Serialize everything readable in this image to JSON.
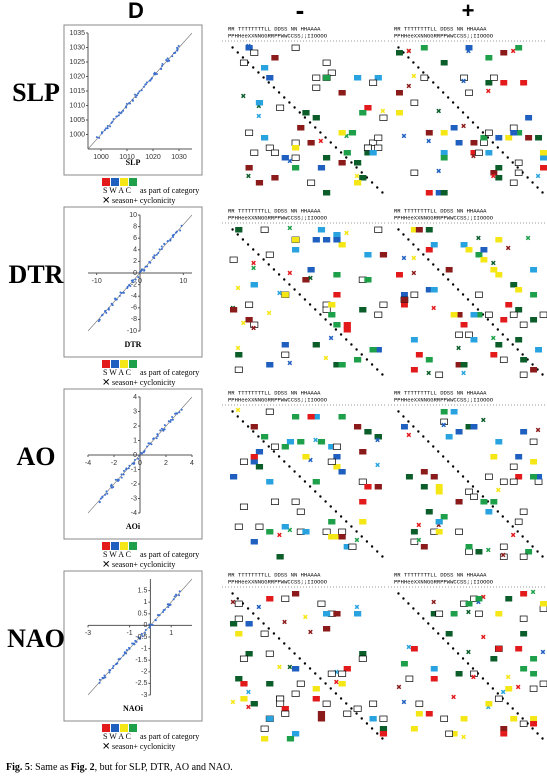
{
  "header": {
    "left": "D",
    "minus": "-",
    "plus": "+"
  },
  "matrix_header": {
    "row1": "RR  TTTTTTTTLL      DDSS        NN  HHAAAA",
    "row2": "PPHHeeXXNNGGRRPPWWCCSS;;IIOOOO"
  },
  "legend": {
    "colors": [
      "#e31a1c",
      "#1f5fbf",
      "#f5e616",
      "#1ea04a"
    ],
    "letters": "S W A C",
    "text1": "as part of category",
    "text2": "season+ cyclonicity"
  },
  "panels": [
    {
      "label": "SLP",
      "plot": {
        "xlabel": "SLP",
        "xlim": [
          995,
          1035
        ],
        "ylim": [
          995,
          1035
        ],
        "xticks": [
          1000,
          1010,
          1020,
          1030
        ],
        "yticks": [
          1000,
          1005,
          1010,
          1015,
          1020,
          1025,
          1030,
          1035
        ],
        "axes_cross_zero": false
      }
    },
    {
      "label": "DTR",
      "plot": {
        "xlabel": "DTR",
        "xlim": [
          -12,
          12
        ],
        "ylim": [
          -10,
          10
        ],
        "xticks": [
          -10,
          0,
          10
        ],
        "yticks": [
          -10,
          -8,
          -6,
          -4,
          -2,
          0,
          2,
          4,
          6,
          8,
          10
        ],
        "axes_cross_zero": true
      }
    },
    {
      "label": "AO",
      "plot": {
        "xlabel": "AOi",
        "xlim": [
          -4,
          4
        ],
        "ylim": [
          -4,
          4
        ],
        "xticks": [
          -4,
          -2,
          0,
          2,
          4
        ],
        "yticks": [
          -4,
          -3,
          -2,
          -1,
          0,
          1,
          2,
          3,
          4
        ],
        "axes_cross_zero": true
      }
    },
    {
      "label": "NAO",
      "plot": {
        "xlabel": "NAOi",
        "xlim": [
          -3,
          2
        ],
        "ylim": [
          -3,
          2
        ],
        "xticks": [
          -3,
          -1,
          1
        ],
        "yticks": [
          -3,
          -2.5,
          -2,
          -1.5,
          -1,
          -0.5,
          0,
          0.5,
          1,
          1.5
        ],
        "axes_cross_zero": true
      }
    }
  ],
  "caption": {
    "fig": "Fig. 5",
    "text1": ": Same as ",
    "ref": "Fig. 2",
    "text2": ", but for SLP, DTR, AO and NAO."
  }
}
